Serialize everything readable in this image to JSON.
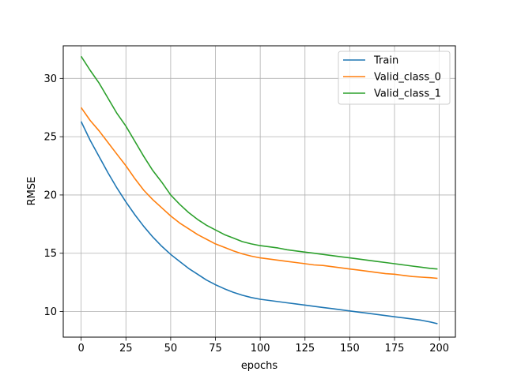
{
  "chart_data": {
    "type": "line",
    "title": "",
    "xlabel": "epochs",
    "ylabel": "RMSE",
    "xlim": [
      -10,
      209
    ],
    "ylim": [
      7.8,
      32.8
    ],
    "xticks": [
      0,
      25,
      50,
      75,
      100,
      125,
      150,
      175,
      200
    ],
    "yticks": [
      10,
      15,
      20,
      25,
      30
    ],
    "grid": true,
    "legend_position": "top-right",
    "x": [
      0,
      5,
      10,
      15,
      20,
      25,
      30,
      35,
      40,
      45,
      50,
      55,
      60,
      65,
      70,
      75,
      80,
      85,
      90,
      95,
      100,
      105,
      110,
      115,
      120,
      125,
      130,
      135,
      140,
      145,
      150,
      155,
      160,
      165,
      170,
      175,
      180,
      185,
      190,
      195,
      199
    ],
    "series": [
      {
        "name": "Train",
        "color": "#1f77b4",
        "values": [
          26.3,
          24.7,
          23.3,
          21.9,
          20.6,
          19.4,
          18.3,
          17.3,
          16.4,
          15.6,
          14.9,
          14.3,
          13.7,
          13.2,
          12.7,
          12.3,
          11.95,
          11.65,
          11.4,
          11.2,
          11.05,
          10.95,
          10.85,
          10.75,
          10.65,
          10.55,
          10.45,
          10.35,
          10.25,
          10.15,
          10.05,
          9.95,
          9.85,
          9.75,
          9.65,
          9.55,
          9.45,
          9.35,
          9.25,
          9.1,
          8.95
        ]
      },
      {
        "name": "Valid_class_0",
        "color": "#ff7f0e",
        "values": [
          27.5,
          26.4,
          25.5,
          24.5,
          23.5,
          22.5,
          21.4,
          20.4,
          19.6,
          18.9,
          18.2,
          17.6,
          17.1,
          16.6,
          16.2,
          15.8,
          15.5,
          15.2,
          14.95,
          14.75,
          14.6,
          14.5,
          14.4,
          14.3,
          14.2,
          14.1,
          14.0,
          13.95,
          13.85,
          13.75,
          13.65,
          13.55,
          13.45,
          13.35,
          13.25,
          13.2,
          13.1,
          13.0,
          12.95,
          12.9,
          12.85
        ]
      },
      {
        "name": "Valid_class_1",
        "color": "#2ca02c",
        "values": [
          31.9,
          30.7,
          29.6,
          28.3,
          27.0,
          25.9,
          24.6,
          23.3,
          22.1,
          21.1,
          20.0,
          19.2,
          18.5,
          17.9,
          17.4,
          17.0,
          16.6,
          16.3,
          16.0,
          15.8,
          15.65,
          15.55,
          15.45,
          15.3,
          15.2,
          15.1,
          15.0,
          14.9,
          14.8,
          14.7,
          14.6,
          14.5,
          14.4,
          14.3,
          14.2,
          14.1,
          14.0,
          13.9,
          13.8,
          13.7,
          13.65
        ]
      }
    ]
  }
}
